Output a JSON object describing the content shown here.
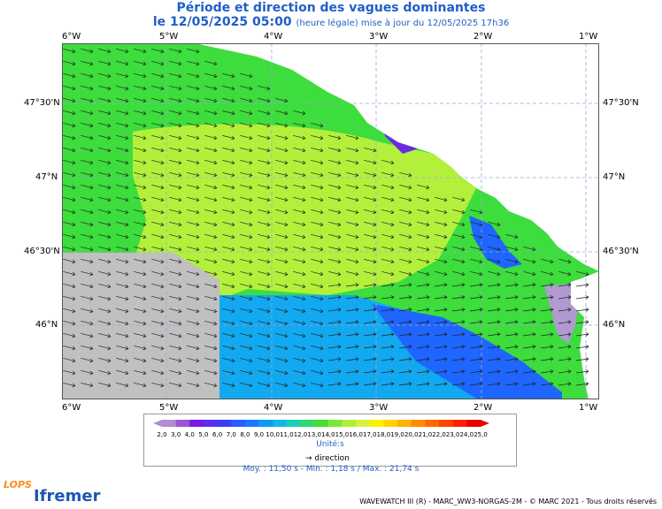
{
  "header": {
    "title": "Période et direction des vagues dominantes",
    "date": "le 12/05/2025 05:00",
    "update": "(heure légale) mise à jour du 12/05/2025 17h36"
  },
  "axes": {
    "lon_labels": [
      "6°W",
      "5°W",
      "4°W",
      "3°W",
      "2°W",
      "1°W"
    ],
    "lat_labels": [
      "47°30'N",
      "47°N",
      "46°30'N",
      "46°N"
    ]
  },
  "colors": {
    "land": "#ffffff",
    "nodata": "#c0c0c0",
    "period_12_13": "#3cdd3c",
    "period_13_14": "#b3f03c",
    "period_10_11": "#12a9f0",
    "period_9_10": "#1e66ff",
    "period_4_5": "#6c2be0",
    "period_3_4": "#b09ad0"
  },
  "legend": {
    "ticks": [
      "2,0",
      "3,0",
      "4,0",
      "5,0",
      "6,0",
      "7,0",
      "8,0",
      "9,0",
      "10,0",
      "11,0",
      "12,0",
      "13,0",
      "14,0",
      "15,0",
      "16,0",
      "17,0",
      "18,0",
      "19,0",
      "20,0",
      "21,0",
      "22,0",
      "23,0",
      "24,0",
      "25,0"
    ],
    "colors": [
      "#b08ed0",
      "#9a55d6",
      "#7b18e8",
      "#5a2ef0",
      "#3c3cfa",
      "#2a5cff",
      "#1e78ff",
      "#0b9bf0",
      "#12b8e8",
      "#18d0b8",
      "#2ed872",
      "#44e030",
      "#7ae838",
      "#b0ee3c",
      "#d8f040",
      "#fff000",
      "#ffd200",
      "#ffb000",
      "#ff8c00",
      "#ff6800",
      "#ff4400",
      "#ff2000",
      "#e80000"
    ],
    "units": "Unité:s",
    "direction_label": "direction"
  },
  "stats": "Moy. : 11,50 s   -   Min. : 1,18 s / Max. : 21,74 s",
  "credit": "WAVEWATCH III (R) - MARC_WW3-NORGAS-2M - © MARC 2021 - Tous droits réservés",
  "logos": {
    "lops": "LOPS",
    "ifremer": "Ifremer"
  }
}
